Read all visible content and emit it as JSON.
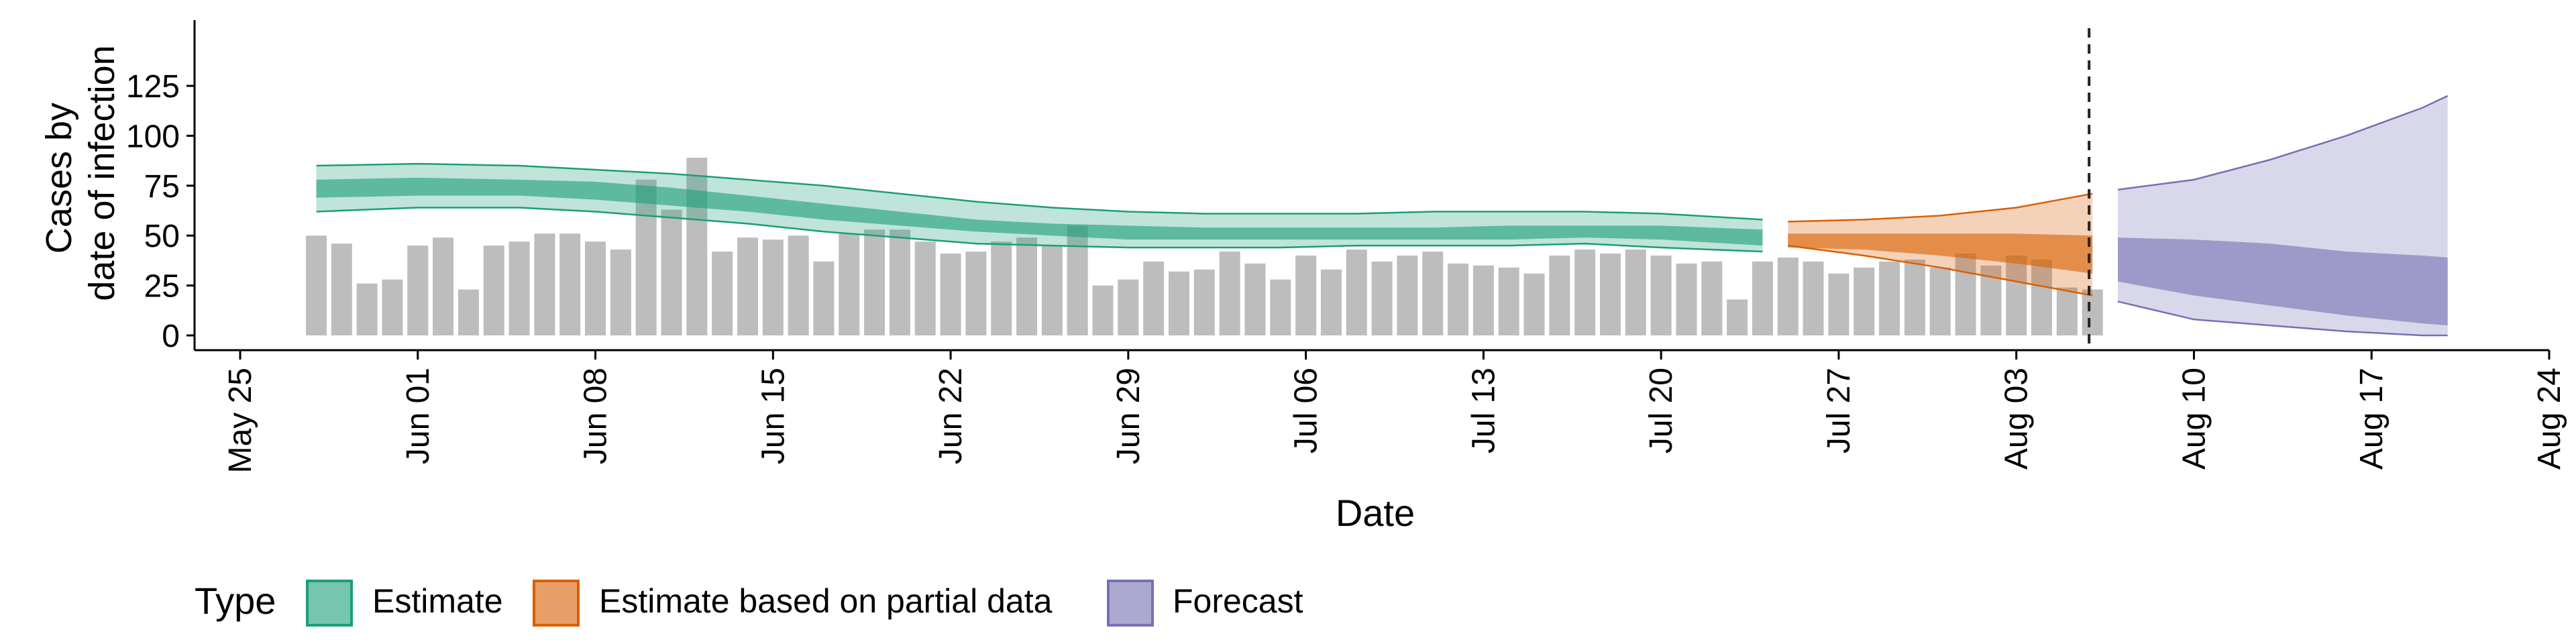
{
  "chart_data": {
    "type": "bar",
    "ylabel_lines": [
      "Cases by",
      "date of infection"
    ],
    "xlabel": "Date",
    "ylim": [
      0,
      125
    ],
    "y_ticks": [
      0,
      25,
      50,
      75,
      100,
      125
    ],
    "x_ticks": [
      {
        "label": "May 25",
        "date": "2020-05-25"
      },
      {
        "label": "Jun 01",
        "date": "2020-06-01"
      },
      {
        "label": "Jun 08",
        "date": "2020-06-08"
      },
      {
        "label": "Jun 15",
        "date": "2020-06-15"
      },
      {
        "label": "Jun 22",
        "date": "2020-06-22"
      },
      {
        "label": "Jun 29",
        "date": "2020-06-29"
      },
      {
        "label": "Jul 06",
        "date": "2020-07-06"
      },
      {
        "label": "Jul 13",
        "date": "2020-07-13"
      },
      {
        "label": "Jul 20",
        "date": "2020-07-20"
      },
      {
        "label": "Jul 27",
        "date": "2020-07-27"
      },
      {
        "label": "Aug 03",
        "date": "2020-08-03"
      },
      {
        "label": "Aug 10",
        "date": "2020-08-10"
      },
      {
        "label": "Aug 17",
        "date": "2020-08-17"
      },
      {
        "label": "Aug 24",
        "date": "2020-08-24"
      }
    ],
    "xlim": [
      "2020-05-25",
      "2020-08-24"
    ],
    "grid": false,
    "legend_position": "bottom-left",
    "bars": {
      "color": "#bdbdbd",
      "dates": [
        "2020-05-28",
        "2020-05-29",
        "2020-05-30",
        "2020-05-31",
        "2020-06-01",
        "2020-06-02",
        "2020-06-03",
        "2020-06-04",
        "2020-06-05",
        "2020-06-06",
        "2020-06-07",
        "2020-06-08",
        "2020-06-09",
        "2020-06-10",
        "2020-06-11",
        "2020-06-12",
        "2020-06-13",
        "2020-06-14",
        "2020-06-15",
        "2020-06-16",
        "2020-06-17",
        "2020-06-18",
        "2020-06-19",
        "2020-06-20",
        "2020-06-21",
        "2020-06-22",
        "2020-06-23",
        "2020-06-24",
        "2020-06-25",
        "2020-06-26",
        "2020-06-27",
        "2020-06-28",
        "2020-06-29",
        "2020-06-30",
        "2020-07-01",
        "2020-07-02",
        "2020-07-03",
        "2020-07-04",
        "2020-07-05",
        "2020-07-06",
        "2020-07-07",
        "2020-07-08",
        "2020-07-09",
        "2020-07-10",
        "2020-07-11",
        "2020-07-12",
        "2020-07-13",
        "2020-07-14",
        "2020-07-15",
        "2020-07-16",
        "2020-07-17",
        "2020-07-18",
        "2020-07-19",
        "2020-07-20",
        "2020-07-21",
        "2020-07-22",
        "2020-07-23",
        "2020-07-24",
        "2020-07-25",
        "2020-07-26",
        "2020-07-27",
        "2020-07-28",
        "2020-07-29",
        "2020-07-30",
        "2020-07-31",
        "2020-08-01",
        "2020-08-02",
        "2020-08-03",
        "2020-08-04",
        "2020-08-05",
        "2020-08-06"
      ],
      "values": [
        50,
        46,
        26,
        28,
        45,
        49,
        23,
        45,
        47,
        51,
        51,
        47,
        43,
        78,
        63,
        89,
        42,
        49,
        48,
        50,
        37,
        51,
        53,
        53,
        47,
        41,
        42,
        47,
        49,
        45,
        55,
        25,
        28,
        37,
        32,
        33,
        42,
        36,
        28,
        40,
        33,
        43,
        37,
        40,
        42,
        36,
        35,
        34,
        31,
        40,
        43,
        41,
        43,
        40,
        36,
        37,
        18,
        37,
        39,
        37,
        31,
        34,
        37,
        38,
        34,
        41,
        35,
        40,
        38,
        24,
        23
      ]
    },
    "forecast_date": "2020-08-06",
    "bands": [
      {
        "name": "Estimate",
        "color": "#1b9e77",
        "dates": [
          "2020-05-28",
          "2020-06-01",
          "2020-06-05",
          "2020-06-08",
          "2020-06-11",
          "2020-06-14",
          "2020-06-17",
          "2020-06-20",
          "2020-06-23",
          "2020-06-26",
          "2020-06-29",
          "2020-07-02",
          "2020-07-05",
          "2020-07-08",
          "2020-07-11",
          "2020-07-14",
          "2020-07-17",
          "2020-07-20",
          "2020-07-24"
        ],
        "outer_upper": [
          85,
          86,
          85,
          83,
          81,
          78,
          75,
          71,
          67,
          64,
          62,
          61,
          61,
          61,
          62,
          62,
          62,
          61,
          58
        ],
        "outer_lower": [
          62,
          64,
          64,
          62,
          59,
          56,
          52,
          49,
          46,
          45,
          44,
          44,
          44,
          45,
          45,
          45,
          46,
          44,
          42
        ],
        "inner_upper": [
          78,
          79,
          78,
          77,
          74,
          70,
          66,
          62,
          58,
          56,
          55,
          54,
          54,
          54,
          54,
          55,
          55,
          55,
          53
        ],
        "inner_lower": [
          69,
          70,
          70,
          68,
          65,
          62,
          58,
          55,
          52,
          50,
          48,
          48,
          48,
          48,
          48,
          48,
          49,
          48,
          45
        ]
      },
      {
        "name": "Estimate based on partial data",
        "color": "#d95f02",
        "dates": [
          "2020-07-25",
          "2020-07-28",
          "2020-07-31",
          "2020-08-03",
          "2020-08-06"
        ],
        "outer_upper": [
          57,
          58,
          60,
          64,
          71
        ],
        "outer_lower": [
          45,
          40,
          34,
          27,
          20
        ],
        "inner_upper": [
          51,
          51,
          51,
          51,
          50
        ],
        "inner_lower": [
          44,
          43,
          40,
          36,
          31
        ]
      },
      {
        "name": "Forecast",
        "color": "#7570b3",
        "dates": [
          "2020-08-07",
          "2020-08-10",
          "2020-08-13",
          "2020-08-16",
          "2020-08-19",
          "2020-08-20"
        ],
        "outer_upper": [
          73,
          78,
          88,
          100,
          114,
          120
        ],
        "outer_lower": [
          17,
          8,
          5,
          2,
          0,
          0
        ],
        "inner_upper": [
          49,
          48,
          46,
          42,
          40,
          39
        ],
        "inner_lower": [
          27,
          20,
          15,
          10,
          6,
          5
        ]
      }
    ],
    "legend": {
      "title": "Type",
      "entries": [
        "Estimate",
        "Estimate based on partial data",
        "Forecast"
      ]
    }
  }
}
